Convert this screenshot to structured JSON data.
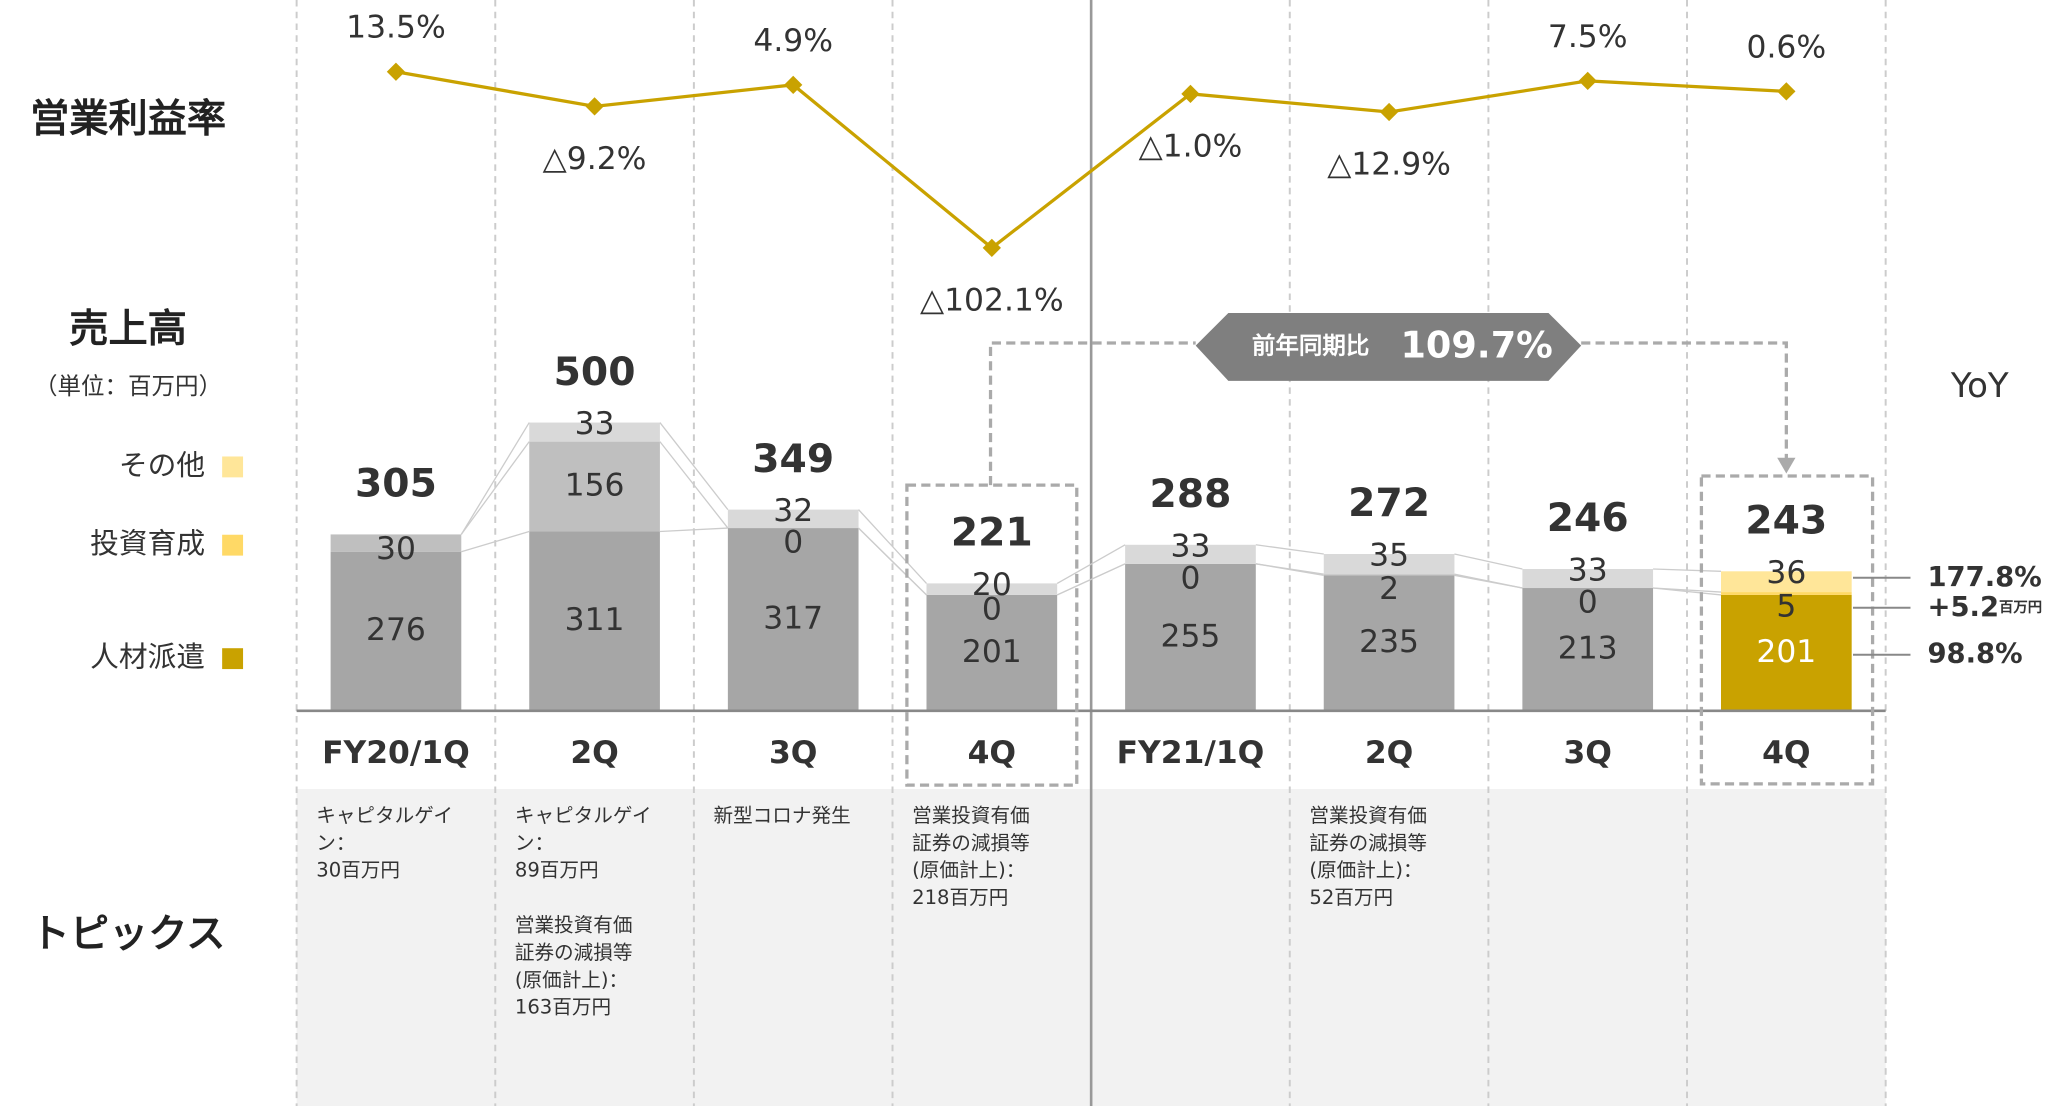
{
  "labels": {
    "margin_title": "営業利益率",
    "sales_title": "売上高",
    "unit": "（単位：百万円）",
    "yoy_title": "YoY",
    "topics_title": "トピックス"
  },
  "chart_data": [
    {
      "type": "line",
      "values": [
        13.5,
        -9.2,
        4.9,
        -102.1,
        -1.0,
        -12.9,
        7.5,
        0.6
      ],
      "value_labels": [
        "13.5%",
        "△9.2%",
        "4.9%",
        "△102.1%",
        "△1.0%",
        "△12.9%",
        "7.5%",
        "0.6%"
      ],
      "color": "#c9a200"
    },
    {
      "type": "bar",
      "stacked": true,
      "categories": [
        "FY20/1Q",
        "2Q",
        "3Q",
        "4Q",
        "FY21/1Q",
        "2Q",
        "3Q",
        "4Q"
      ],
      "series": [
        {
          "name": "人材派遣",
          "color": "#a6a6a6",
          "highlight_color": "#c9a200",
          "values": [
            276,
            311,
            317,
            201,
            255,
            235,
            213,
            201
          ]
        },
        {
          "name": "投資育成",
          "color": "#bfbfbf",
          "highlight_color": "#ffd966",
          "values": [
            30,
            156,
            0,
            0,
            0,
            2,
            0,
            5
          ]
        },
        {
          "name": "その他",
          "color": "#d9d9d9",
          "highlight_color": "#ffe699",
          "values": [
            null,
            33,
            32,
            20,
            33,
            35,
            33,
            36
          ]
        }
      ],
      "totals": [
        305,
        500,
        349,
        221,
        288,
        272,
        246,
        243
      ],
      "comparison": {
        "label": "前年同期比",
        "value": "109.7%"
      },
      "yoy": [
        {
          "label": "177.8%"
        },
        {
          "label": "+5.2",
          "unit": "百万円"
        },
        {
          "label": "98.8%"
        }
      ]
    }
  ],
  "topics": [
    [
      [
        "キャピタルゲイ",
        "ン：",
        "30百万円"
      ]
    ],
    [
      [
        "キャピタルゲイ",
        "ン：",
        "89百万円"
      ],
      [
        "営業投資有価",
        "証券の減損等",
        "(原価計上)：",
        "163百万円"
      ]
    ],
    [
      [
        "新型コロナ発生"
      ]
    ],
    [
      [
        "営業投資有価",
        "証券の減損等",
        "(原価計上)：",
        "218百万円"
      ]
    ],
    [],
    [
      [
        "営業投資有価",
        "証券の減損等",
        "(原価計上)：",
        "52百万円"
      ]
    ],
    [],
    []
  ]
}
